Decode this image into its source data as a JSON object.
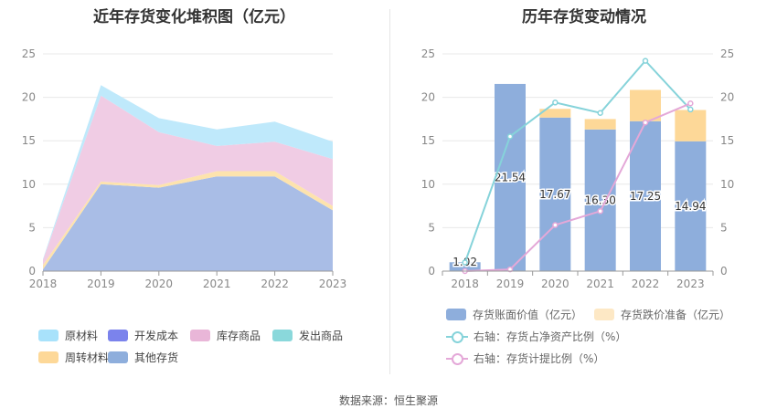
{
  "left_chart": {
    "title": "近年存货变化堆积图（亿元）",
    "chart_data": {
      "type": "area",
      "stacked": true,
      "x": [
        "2018",
        "2019",
        "2020",
        "2021",
        "2022",
        "2023"
      ],
      "ylim": [
        0,
        25
      ],
      "yticks": [
        0,
        5,
        10,
        15,
        20,
        25
      ],
      "series": [
        {
          "name": "其他存货",
          "color": "#a9bde6",
          "values": [
            0.2,
            10.0,
            9.6,
            10.9,
            10.9,
            7.0
          ]
        },
        {
          "name": "周转材料",
          "color": "#fde3ad",
          "values": [
            0.5,
            0.3,
            0.3,
            0.6,
            0.6,
            0.5
          ]
        },
        {
          "name": "发出商品",
          "color": "#8ad8db",
          "values": [
            0,
            0,
            0,
            0,
            0,
            0
          ]
        },
        {
          "name": "库存商品",
          "color": "#f0cce4",
          "values": [
            0.6,
            9.9,
            6.1,
            2.9,
            3.4,
            5.4
          ]
        },
        {
          "name": "开发成本",
          "color": "#7b83ec",
          "values": [
            0,
            0,
            0,
            0,
            0,
            0
          ]
        },
        {
          "name": "原材料",
          "color": "#bfe9fb",
          "values": [
            0.1,
            1.2,
            1.6,
            1.9,
            2.3,
            2.0
          ]
        }
      ]
    },
    "legend": [
      {
        "label": "原材料",
        "color": "#a8e2fb"
      },
      {
        "label": "开发成本",
        "color": "#7b83ec"
      },
      {
        "label": "库存商品",
        "color": "#e9b6d8"
      },
      {
        "label": "发出商品",
        "color": "#8ad8db"
      },
      {
        "label": "周转材料",
        "color": "#fdd898"
      },
      {
        "label": "其他存货",
        "color": "#8eaedc"
      }
    ]
  },
  "right_chart": {
    "title": "历年存货变动情况",
    "chart_data": {
      "type": "bar",
      "stacked": true,
      "categories": [
        "2018",
        "2019",
        "2020",
        "2021",
        "2022",
        "2023"
      ],
      "ylim": [
        0,
        25
      ],
      "y2lim": [
        0,
        25
      ],
      "yticks": [
        0,
        5,
        10,
        15,
        20,
        25
      ],
      "series": [
        {
          "name": "存货账面价值（亿元）",
          "color": "#8eaedc",
          "values": [
            1.02,
            21.54,
            17.67,
            16.3,
            17.25,
            14.94
          ],
          "labels": [
            "1.02",
            "21.54",
            "17.67",
            "16.30",
            "17.25",
            "14.94"
          ]
        },
        {
          "name": "存货跌价准备（亿元）",
          "color": "#fdd898",
          "values": [
            0.0,
            0.0,
            1.0,
            1.2,
            3.6,
            3.6
          ]
        }
      ],
      "lines": [
        {
          "name": "右轴：存货占净资产比例（%）",
          "color": "#86d3da",
          "values": [
            1.0,
            15.5,
            19.4,
            18.2,
            24.2,
            18.6
          ]
        },
        {
          "name": "右轴：存货计提比例（%）",
          "color": "#e4a8d8",
          "values": [
            0.0,
            0.2,
            5.3,
            6.9,
            17.1,
            19.3
          ]
        }
      ]
    }
  },
  "source": "数据来源：恒生聚源"
}
